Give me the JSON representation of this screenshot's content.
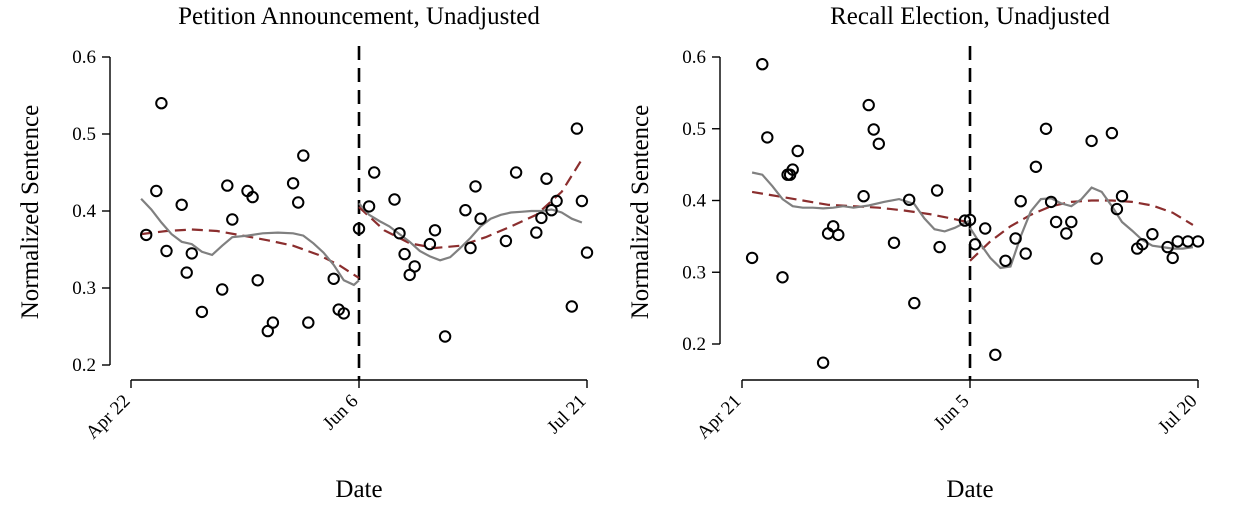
{
  "colors": {
    "linear_fit": "#8b2e2e",
    "loess_fit": "#808080",
    "points": "#000000",
    "cutoff": "#000000"
  },
  "chart_data": [
    {
      "type": "scatter",
      "title": "Petition Announcement, Unadjusted",
      "xlabel": "Date",
      "ylabel": "Normalized Sentence",
      "x_type": "days_from_cutoff",
      "x_ticks": [
        {
          "value": -45,
          "label": "Apr 22"
        },
        {
          "value": 0,
          "label": "Jun 6"
        },
        {
          "value": 45,
          "label": "Jul 21"
        }
      ],
      "xlim": [
        -45,
        45
      ],
      "ylim": [
        0.18,
        0.6
      ],
      "y_ticks": [
        {
          "value": 0.2,
          "label": "0.2"
        },
        {
          "value": 0.3,
          "label": "0.3"
        },
        {
          "value": 0.4,
          "label": "0.4"
        },
        {
          "value": 0.5,
          "label": "0.5"
        },
        {
          "value": 0.6,
          "label": "0.6"
        }
      ],
      "cutoff_x": 0,
      "grid": false,
      "series": [
        {
          "kind": "points",
          "x": [
            -42,
            -40,
            -39,
            -38,
            -35,
            -34,
            -33,
            -31,
            -27,
            -26,
            -25,
            -22,
            -21,
            -20,
            -18,
            -17,
            -13,
            -12,
            -11,
            -10,
            -5,
            -4,
            -3,
            0,
            2,
            3,
            7,
            8,
            9,
            10,
            11,
            14,
            15,
            17,
            21,
            22,
            23,
            24,
            29,
            31,
            35,
            36,
            37,
            38,
            39,
            42,
            43,
            44,
            45
          ],
          "y": [
            0.369,
            0.426,
            0.54,
            0.348,
            0.408,
            0.32,
            0.345,
            0.269,
            0.298,
            0.433,
            0.389,
            0.426,
            0.418,
            0.31,
            0.244,
            0.255,
            0.436,
            0.411,
            0.472,
            0.255,
            0.312,
            0.272,
            0.267,
            0.377,
            0.406,
            0.45,
            0.415,
            0.371,
            0.344,
            0.317,
            0.328,
            0.357,
            0.375,
            0.237,
            0.401,
            0.352,
            0.432,
            0.39,
            0.361,
            0.45,
            0.372,
            0.391,
            0.442,
            0.401,
            0.413,
            0.276,
            0.507,
            0.413,
            0.346
          ]
        },
        {
          "kind": "linear_fit_pre",
          "x": [
            -43,
            -38,
            -33,
            -28,
            -23,
            -18,
            -13,
            -8,
            -4,
            0
          ],
          "y": [
            0.37,
            0.374,
            0.376,
            0.374,
            0.368,
            0.362,
            0.355,
            0.343,
            0.33,
            0.313
          ]
        },
        {
          "kind": "linear_fit_post",
          "x": [
            0,
            5,
            10,
            15,
            20,
            25,
            30,
            35,
            40,
            44
          ],
          "y": [
            0.405,
            0.375,
            0.358,
            0.352,
            0.355,
            0.366,
            0.38,
            0.395,
            0.425,
            0.467
          ]
        },
        {
          "kind": "loess_fit_pre",
          "x": [
            -43,
            -41,
            -39,
            -37,
            -35,
            -33,
            -31,
            -29,
            -27,
            -25,
            -22,
            -19,
            -16,
            -13,
            -11,
            -9,
            -7,
            -5,
            -3,
            -1,
            0
          ],
          "y": [
            0.416,
            0.402,
            0.385,
            0.37,
            0.36,
            0.357,
            0.347,
            0.343,
            0.355,
            0.366,
            0.368,
            0.371,
            0.372,
            0.371,
            0.368,
            0.358,
            0.346,
            0.33,
            0.31,
            0.304,
            0.31
          ]
        },
        {
          "kind": "loess_fit_post",
          "x": [
            0,
            2,
            4,
            6,
            8,
            10,
            12,
            14,
            16,
            18,
            20,
            22,
            24,
            26,
            28,
            30,
            32,
            34,
            36,
            38,
            40,
            42,
            44
          ],
          "y": [
            0.41,
            0.395,
            0.387,
            0.38,
            0.37,
            0.36,
            0.348,
            0.341,
            0.336,
            0.34,
            0.352,
            0.365,
            0.38,
            0.39,
            0.395,
            0.398,
            0.399,
            0.4,
            0.4,
            0.402,
            0.398,
            0.39,
            0.385
          ]
        }
      ]
    },
    {
      "type": "scatter",
      "title": "Recall Election, Unadjusted",
      "xlabel": "Date",
      "ylabel": "Normalized Sentence",
      "x_type": "days_from_cutoff",
      "x_ticks": [
        {
          "value": -45,
          "label": "Apr 21"
        },
        {
          "value": 0,
          "label": "Jun 5"
        },
        {
          "value": 45,
          "label": "Jul 20"
        }
      ],
      "xlim": [
        -45,
        45
      ],
      "ylim": [
        0.155,
        0.6
      ],
      "y_ticks": [
        {
          "value": 0.2,
          "label": "0.2"
        },
        {
          "value": 0.3,
          "label": "0.3"
        },
        {
          "value": 0.4,
          "label": "0.4"
        },
        {
          "value": 0.5,
          "label": "0.5"
        },
        {
          "value": 0.6,
          "label": "0.6"
        }
      ],
      "cutoff_x": 0,
      "grid": false,
      "series": [
        {
          "kind": "points",
          "x": [
            -43,
            -41,
            -40,
            -37,
            -36,
            -35,
            -34,
            -35.5,
            -29,
            -28,
            -27,
            -26,
            -21,
            -20,
            -19,
            -18,
            -15,
            -12,
            -11,
            -6,
            -6.5,
            -1,
            0,
            1,
            3,
            5,
            7,
            9,
            10,
            11,
            13,
            15,
            16,
            17,
            19,
            20,
            24,
            25,
            28,
            29,
            30,
            33,
            34,
            36,
            39,
            40,
            41,
            43,
            45
          ],
          "y": [
            0.32,
            0.59,
            0.488,
            0.293,
            0.436,
            0.443,
            0.469,
            0.436,
            0.174,
            0.354,
            0.364,
            0.352,
            0.406,
            0.533,
            0.499,
            0.479,
            0.341,
            0.401,
            0.257,
            0.335,
            0.414,
            0.372,
            0.373,
            0.339,
            0.361,
            0.185,
            0.316,
            0.347,
            0.399,
            0.326,
            0.447,
            0.5,
            0.398,
            0.37,
            0.354,
            0.37,
            0.483,
            0.319,
            0.494,
            0.388,
            0.406,
            0.333,
            0.339,
            0.353,
            0.335,
            0.32,
            0.343,
            0.343,
            0.343
          ]
        },
        {
          "kind": "linear_fit_pre",
          "x": [
            -43,
            -38,
            -33,
            -28,
            -23,
            -18,
            -13,
            -8,
            -3,
            0
          ],
          "y": [
            0.412,
            0.406,
            0.4,
            0.394,
            0.392,
            0.39,
            0.386,
            0.381,
            0.374,
            0.369
          ]
        },
        {
          "kind": "linear_fit_post",
          "x": [
            0,
            4,
            8,
            12,
            16,
            20,
            24,
            28,
            32,
            36,
            40,
            44
          ],
          "y": [
            0.316,
            0.343,
            0.364,
            0.38,
            0.392,
            0.398,
            0.4,
            0.4,
            0.398,
            0.393,
            0.383,
            0.366
          ]
        },
        {
          "kind": "loess_fit_pre",
          "x": [
            -43,
            -41,
            -39,
            -37,
            -35,
            -33,
            -31,
            -29,
            -27,
            -25,
            -23,
            -20,
            -17,
            -14,
            -11,
            -9,
            -7,
            -5,
            -3,
            -1,
            0
          ],
          "y": [
            0.439,
            0.436,
            0.42,
            0.402,
            0.392,
            0.39,
            0.39,
            0.389,
            0.39,
            0.392,
            0.39,
            0.393,
            0.398,
            0.402,
            0.395,
            0.375,
            0.36,
            0.357,
            0.362,
            0.369,
            0.372
          ]
        },
        {
          "kind": "loess_fit_post",
          "x": [
            0,
            2,
            4,
            6,
            8,
            10,
            12,
            14,
            16,
            18,
            20,
            22,
            24,
            26,
            28,
            30,
            32,
            34,
            36,
            38,
            40,
            42,
            44
          ],
          "y": [
            0.362,
            0.34,
            0.32,
            0.306,
            0.308,
            0.35,
            0.385,
            0.402,
            0.403,
            0.396,
            0.392,
            0.402,
            0.418,
            0.412,
            0.392,
            0.37,
            0.358,
            0.345,
            0.337,
            0.335,
            0.333,
            0.333,
            0.335
          ]
        }
      ]
    }
  ]
}
